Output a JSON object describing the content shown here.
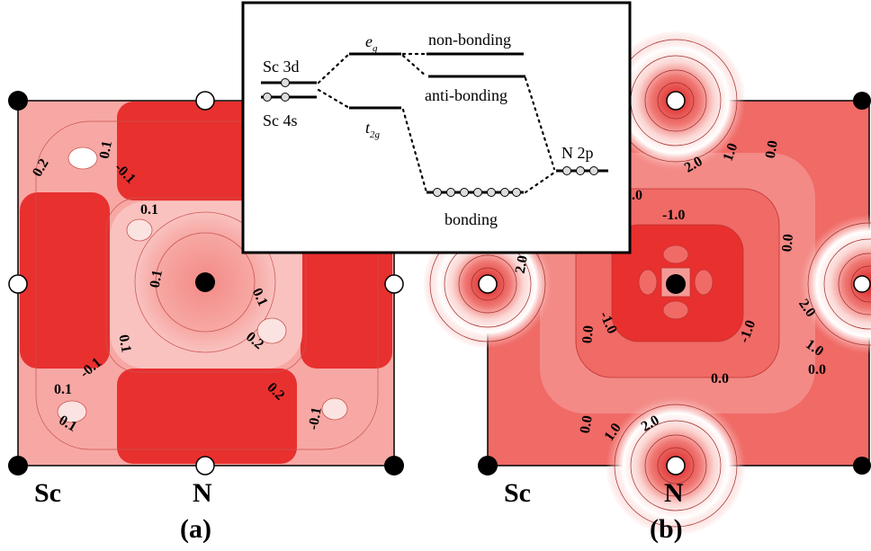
{
  "panel_a": {
    "letter": "(a)",
    "atom_left": "Sc",
    "atom_right": "N",
    "contour_labels": [
      "0.2",
      "0.1",
      "-0.1",
      "0.1",
      "0.1",
      "0.1",
      "0.1",
      "0.2",
      "0.1",
      "-0.1",
      "0.1",
      "0.2",
      "-0.1",
      "0.1"
    ]
  },
  "panel_b": {
    "letter": "(b)",
    "atom_left": "Sc",
    "atom_right": "N",
    "contour_labels": [
      "2.0",
      "1.0",
      "0.0",
      "0.0",
      "-1.0",
      "0.0",
      "2.0",
      "0.0",
      "-1.0",
      "-1.0",
      "2.0",
      "1.0",
      "0.0",
      "0.0",
      "0.0",
      "1.0",
      "2.0"
    ]
  },
  "mo_diagram": {
    "sc3d": "Sc 3d",
    "sc4s": "Sc 4s",
    "eg": "e",
    "eg_sub": "g",
    "t2g": "t",
    "t2g_sub": "2g",
    "non_bonding": "non-bonding",
    "anti_bonding": "anti-bonding",
    "bonding": "bonding",
    "n2p": "N 2p"
  },
  "colors": {
    "deep_red": "#e8302f",
    "mid_red": "#f06a66",
    "light_red": "#f7a8a4",
    "pale": "#fbe3e1",
    "white": "#ffffff"
  }
}
